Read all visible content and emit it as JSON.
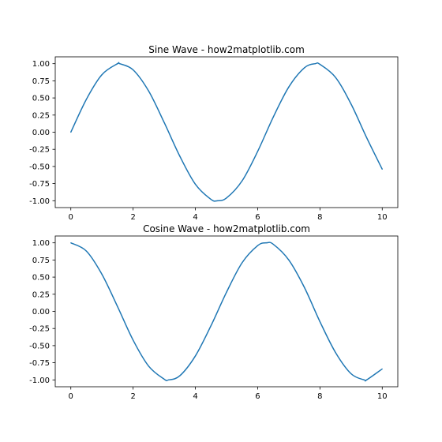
{
  "chart_data": [
    {
      "type": "line",
      "title": "Sine Wave - how2matplotlib.com",
      "xlabel": "",
      "ylabel": "",
      "function": "sin(x)",
      "x": [
        0,
        0.5,
        1,
        1.5,
        1.57,
        2,
        2.5,
        3,
        3.5,
        4,
        4.5,
        4.71,
        5,
        5.5,
        6,
        6.5,
        7,
        7.5,
        7.85,
        8,
        8.5,
        9,
        9.5,
        10
      ],
      "series": [
        {
          "color": "#1f77b4",
          "values": [
            0.0,
            0.48,
            0.84,
            1.0,
            1.0,
            0.91,
            0.6,
            0.14,
            -0.35,
            -0.76,
            -0.98,
            -1.0,
            -0.96,
            -0.71,
            -0.28,
            0.22,
            0.66,
            0.94,
            1.0,
            0.99,
            0.8,
            0.41,
            -0.08,
            -0.54
          ]
        }
      ],
      "xlim": [
        -0.5,
        10.5
      ],
      "ylim": [
        -1.1,
        1.1
      ],
      "xticks": [
        0,
        2,
        4,
        6,
        8,
        10
      ],
      "xtick_labels": [
        "0",
        "2",
        "4",
        "6",
        "8",
        "10"
      ],
      "yticks": [
        1.0,
        0.75,
        0.5,
        0.25,
        0.0,
        -0.25,
        -0.5,
        -0.75,
        -1.0
      ],
      "ytick_labels": [
        "1.00",
        "0.75",
        "0.50",
        "0.25",
        "0.00",
        "-0.25",
        "-0.50",
        "-0.75",
        "-1.00"
      ],
      "grid": false,
      "legend": false
    },
    {
      "type": "line",
      "title": "Cosine Wave - how2matplotlib.com",
      "xlabel": "",
      "ylabel": "",
      "function": "cos(x)",
      "x": [
        0,
        0.5,
        1,
        1.5,
        2,
        2.5,
        3,
        3.14,
        3.5,
        4,
        4.5,
        5,
        5.5,
        6,
        6.28,
        6.5,
        7,
        7.5,
        8,
        8.5,
        9,
        9.42,
        9.5,
        10
      ],
      "series": [
        {
          "color": "#1f77b4",
          "values": [
            1.0,
            0.88,
            0.54,
            0.07,
            -0.42,
            -0.8,
            -0.99,
            -1.0,
            -0.94,
            -0.65,
            -0.21,
            0.28,
            0.71,
            0.96,
            1.0,
            0.98,
            0.75,
            0.35,
            -0.15,
            -0.6,
            -0.91,
            -1.0,
            -1.0,
            -0.84
          ]
        }
      ],
      "xlim": [
        -0.5,
        10.5
      ],
      "ylim": [
        -1.1,
        1.1
      ],
      "xticks": [
        0,
        2,
        4,
        6,
        8,
        10
      ],
      "xtick_labels": [
        "0",
        "2",
        "4",
        "6",
        "8",
        "10"
      ],
      "yticks": [
        1.0,
        0.75,
        0.5,
        0.25,
        0.0,
        -0.25,
        -0.5,
        -0.75,
        -1.0
      ],
      "ytick_labels": [
        "1.00",
        "0.75",
        "0.50",
        "0.25",
        "0.00",
        "-0.25",
        "-0.50",
        "-0.75",
        "-1.00"
      ],
      "grid": false,
      "legend": false
    }
  ]
}
